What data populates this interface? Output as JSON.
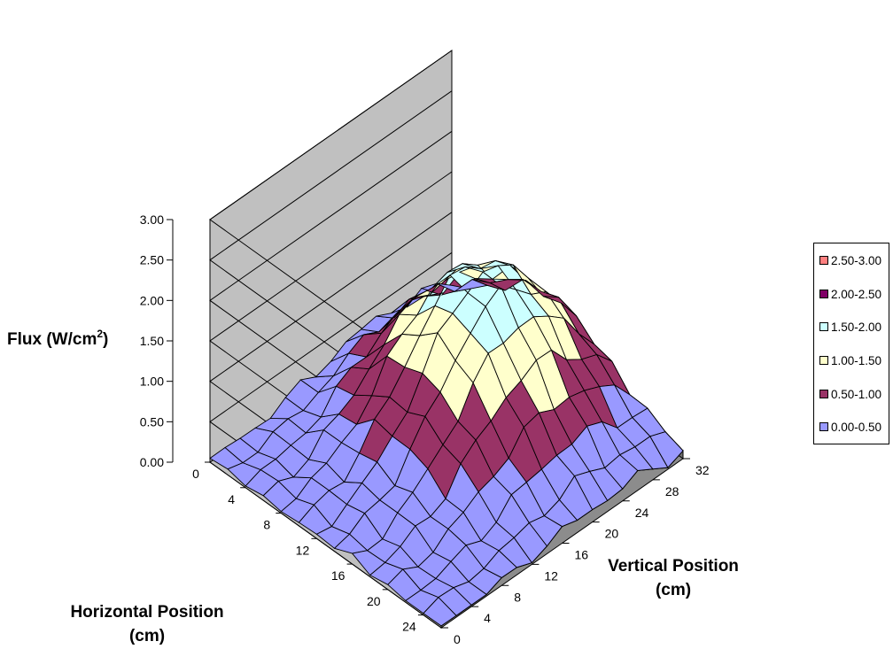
{
  "chart_data": {
    "type": "surface3d",
    "title": "",
    "zlabel": "Flux (W/cm",
    "zlabel_sup": "2",
    "zlabel_end": ")",
    "xlabel_line1": "Horizontal Position",
    "xlabel_line2": "(cm)",
    "ylabel_line1": "Vertical Position",
    "ylabel_line2": "(cm)",
    "zlim": [
      0,
      3
    ],
    "z_ticks": [
      "0.00",
      "0.50",
      "1.00",
      "1.50",
      "2.00",
      "2.50",
      "3.00"
    ],
    "x_ticks": [
      "0",
      "4",
      "8",
      "12",
      "16",
      "20",
      "24"
    ],
    "y_ticks": [
      "0",
      "4",
      "8",
      "12",
      "16",
      "20",
      "24",
      "28",
      "32"
    ],
    "x_range": [
      0,
      26
    ],
    "y_range": [
      0,
      32
    ],
    "grid_step": 2,
    "peak": {
      "x": 12,
      "y": 22,
      "value": 1.85
    },
    "bands": [
      {
        "label": "2.50-3.00",
        "min": 2.5,
        "max": 3.0,
        "color": "#ff8080"
      },
      {
        "label": "2.00-2.50",
        "min": 2.0,
        "max": 2.5,
        "color": "#800066"
      },
      {
        "label": "1.50-2.00",
        "min": 1.5,
        "max": 2.0,
        "color": "#ccffff"
      },
      {
        "label": "1.00-1.50",
        "min": 1.0,
        "max": 1.5,
        "color": "#ffffcc"
      },
      {
        "label": "0.50-1.00",
        "min": 0.5,
        "max": 1.0,
        "color": "#993366"
      },
      {
        "label": "0.00-0.50",
        "min": 0.0,
        "max": 0.5,
        "color": "#9999ff"
      }
    ],
    "wall_color": "#c0c0c0",
    "floor_color": "#808080",
    "legend_position": "right"
  }
}
